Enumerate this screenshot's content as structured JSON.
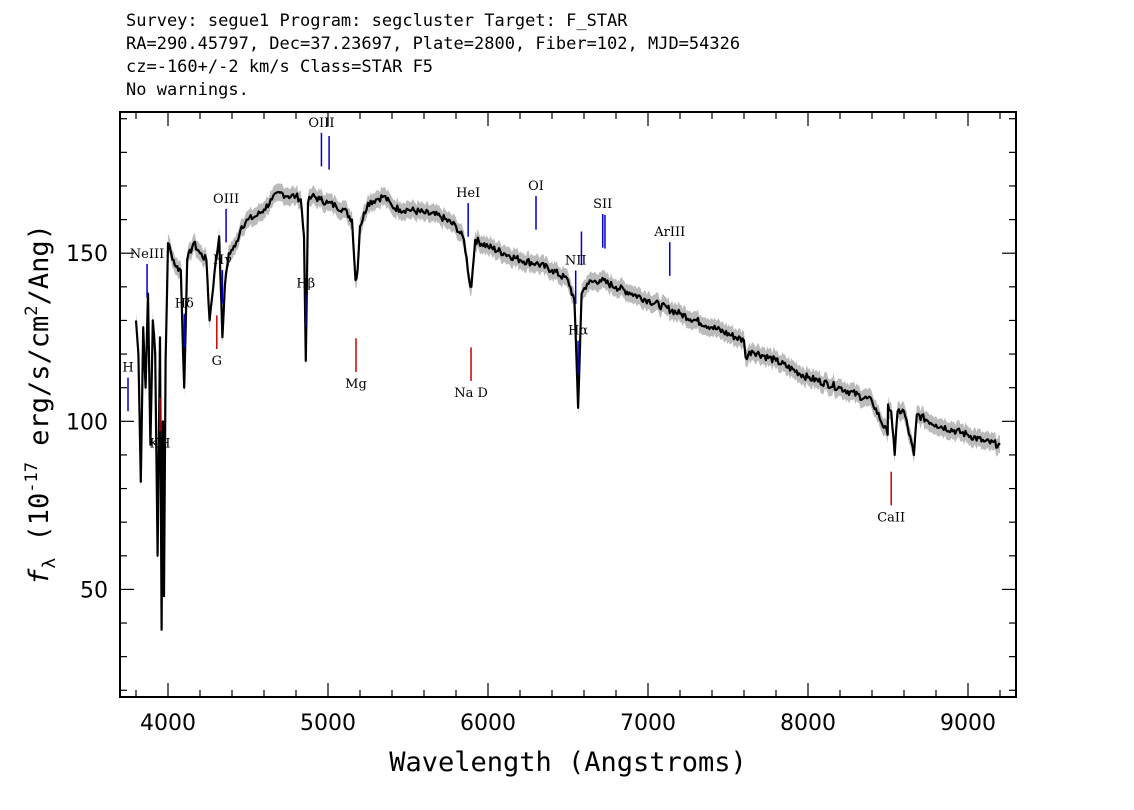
{
  "header": {
    "line1": "Survey: segue1 Program: segcluster Target: F_STAR",
    "line2": "RA=290.45797, Dec=37.23697, Plate=2800, Fiber=102, MJD=54326",
    "line3": "cz=-160+/-2 km/s Class=STAR F5",
    "line4": "No warnings."
  },
  "chart_data": {
    "type": "line",
    "title": "",
    "xlabel": "Wavelength (Angstroms)",
    "ylabel": "f_λ (10^-17 erg/s/cm^2/Ang)",
    "xlim": [
      3700,
      9300
    ],
    "ylim": [
      18,
      192
    ],
    "x_ticks": [
      4000,
      5000,
      6000,
      7000,
      8000,
      9000
    ],
    "y_ticks": [
      50,
      100,
      150
    ],
    "grid": false,
    "colors": {
      "spectrum": "#000000",
      "error_band": "#bbbbbb",
      "emission": "#0000cc",
      "absorption": "#cc0000"
    },
    "series": [
      {
        "points": [
          [
            3800,
            130
          ],
          [
            3815,
            120
          ],
          [
            3830,
            82
          ],
          [
            3845,
            128
          ],
          [
            3860,
            110
          ],
          [
            3875,
            138
          ],
          [
            3890,
            93
          ],
          [
            3905,
            130
          ],
          [
            3920,
            120
          ],
          [
            3935,
            60
          ],
          [
            3950,
            125
          ],
          [
            3960,
            38
          ],
          [
            3968,
            100
          ],
          [
            3975,
            48
          ],
          [
            3985,
            118
          ],
          [
            4000,
            153
          ],
          [
            4020,
            150
          ],
          [
            4050,
            146
          ],
          [
            4080,
            145
          ],
          [
            4101,
            110
          ],
          [
            4120,
            148
          ],
          [
            4160,
            153
          ],
          [
            4200,
            150
          ],
          [
            4240,
            148
          ],
          [
            4260,
            130
          ],
          [
            4290,
            144
          ],
          [
            4320,
            155
          ],
          [
            4340,
            125
          ],
          [
            4355,
            140
          ],
          [
            4380,
            150
          ],
          [
            4420,
            152
          ],
          [
            4460,
            158
          ],
          [
            4500,
            160
          ],
          [
            4550,
            161
          ],
          [
            4600,
            163
          ],
          [
            4650,
            166
          ],
          [
            4700,
            168
          ],
          [
            4750,
            167
          ],
          [
            4800,
            167
          ],
          [
            4830,
            166
          ],
          [
            4850,
            155
          ],
          [
            4861,
            118
          ],
          [
            4875,
            165
          ],
          [
            4900,
            167
          ],
          [
            4950,
            166
          ],
          [
            5000,
            165
          ],
          [
            5050,
            164
          ],
          [
            5100,
            163
          ],
          [
            5150,
            160
          ],
          [
            5172,
            142
          ],
          [
            5185,
            145
          ],
          [
            5200,
            158
          ],
          [
            5250,
            165
          ],
          [
            5300,
            166
          ],
          [
            5350,
            167
          ],
          [
            5400,
            164
          ],
          [
            5450,
            163
          ],
          [
            5500,
            163
          ],
          [
            5600,
            162
          ],
          [
            5700,
            161
          ],
          [
            5800,
            158
          ],
          [
            5850,
            154
          ],
          [
            5890,
            140
          ],
          [
            5896,
            140
          ],
          [
            5920,
            154
          ],
          [
            6000,
            152
          ],
          [
            6100,
            150
          ],
          [
            6200,
            148
          ],
          [
            6300,
            147
          ],
          [
            6400,
            145
          ],
          [
            6500,
            142
          ],
          [
            6540,
            136
          ],
          [
            6563,
            104
          ],
          [
            6585,
            138
          ],
          [
            6620,
            141
          ],
          [
            6700,
            142
          ],
          [
            6800,
            140
          ],
          [
            6900,
            138
          ],
          [
            7000,
            136
          ],
          [
            7200,
            132
          ],
          [
            7400,
            128
          ],
          [
            7600,
            124
          ],
          [
            7610,
            119
          ],
          [
            7650,
            121
          ],
          [
            7800,
            118
          ],
          [
            8000,
            113
          ],
          [
            8200,
            110
          ],
          [
            8400,
            106
          ],
          [
            8500,
            105
          ],
          [
            8498,
            96
          ],
          [
            8520,
            103
          ],
          [
            8542,
            90
          ],
          [
            8560,
            103
          ],
          [
            8600,
            103
          ],
          [
            8662,
            90
          ],
          [
            8680,
            102
          ],
          [
            8800,
            99
          ],
          [
            9000,
            96
          ],
          [
            9100,
            94
          ],
          [
            9200,
            93
          ]
        ]
      }
    ],
    "lines": [
      {
        "label": "H",
        "wave": 3750,
        "kind": "emission"
      },
      {
        "label": "NeIII",
        "wave": 3869,
        "kind": "emission"
      },
      {
        "label": "Hδ",
        "wave": 4102,
        "kind": "emission"
      },
      {
        "label": "Hγ",
        "wave": 4340,
        "kind": "emission"
      },
      {
        "label": "OIII",
        "wave": 4363,
        "kind": "emission"
      },
      {
        "label": "Hβ",
        "wave": 4861,
        "kind": "emission"
      },
      {
        "label": "OIII",
        "wave": 4959,
        "kind": "emission"
      },
      {
        "label": "",
        "wave": 5007,
        "kind": "emission"
      },
      {
        "label": "HeI",
        "wave": 5876,
        "kind": "emission"
      },
      {
        "label": "OI",
        "wave": 6300,
        "kind": "emission"
      },
      {
        "label": "NII",
        "wave": 6548,
        "kind": "emission"
      },
      {
        "label": "Hα",
        "wave": 6563,
        "kind": "emission"
      },
      {
        "label": "",
        "wave": 6584,
        "kind": "emission"
      },
      {
        "label": "SII",
        "wave": 6717,
        "kind": "emission"
      },
      {
        "label": "",
        "wave": 6731,
        "kind": "emission"
      },
      {
        "label": "ArIII",
        "wave": 7136,
        "kind": "emission"
      },
      {
        "label": "KH",
        "wave": 3950,
        "kind": "absorption"
      },
      {
        "label": "G",
        "wave": 4305,
        "kind": "absorption"
      },
      {
        "label": "Mg",
        "wave": 5175,
        "kind": "absorption"
      },
      {
        "label": "Na D",
        "wave": 5894,
        "kind": "absorption"
      },
      {
        "label": "CaII",
        "wave": 8520,
        "kind": "absorption"
      }
    ]
  }
}
